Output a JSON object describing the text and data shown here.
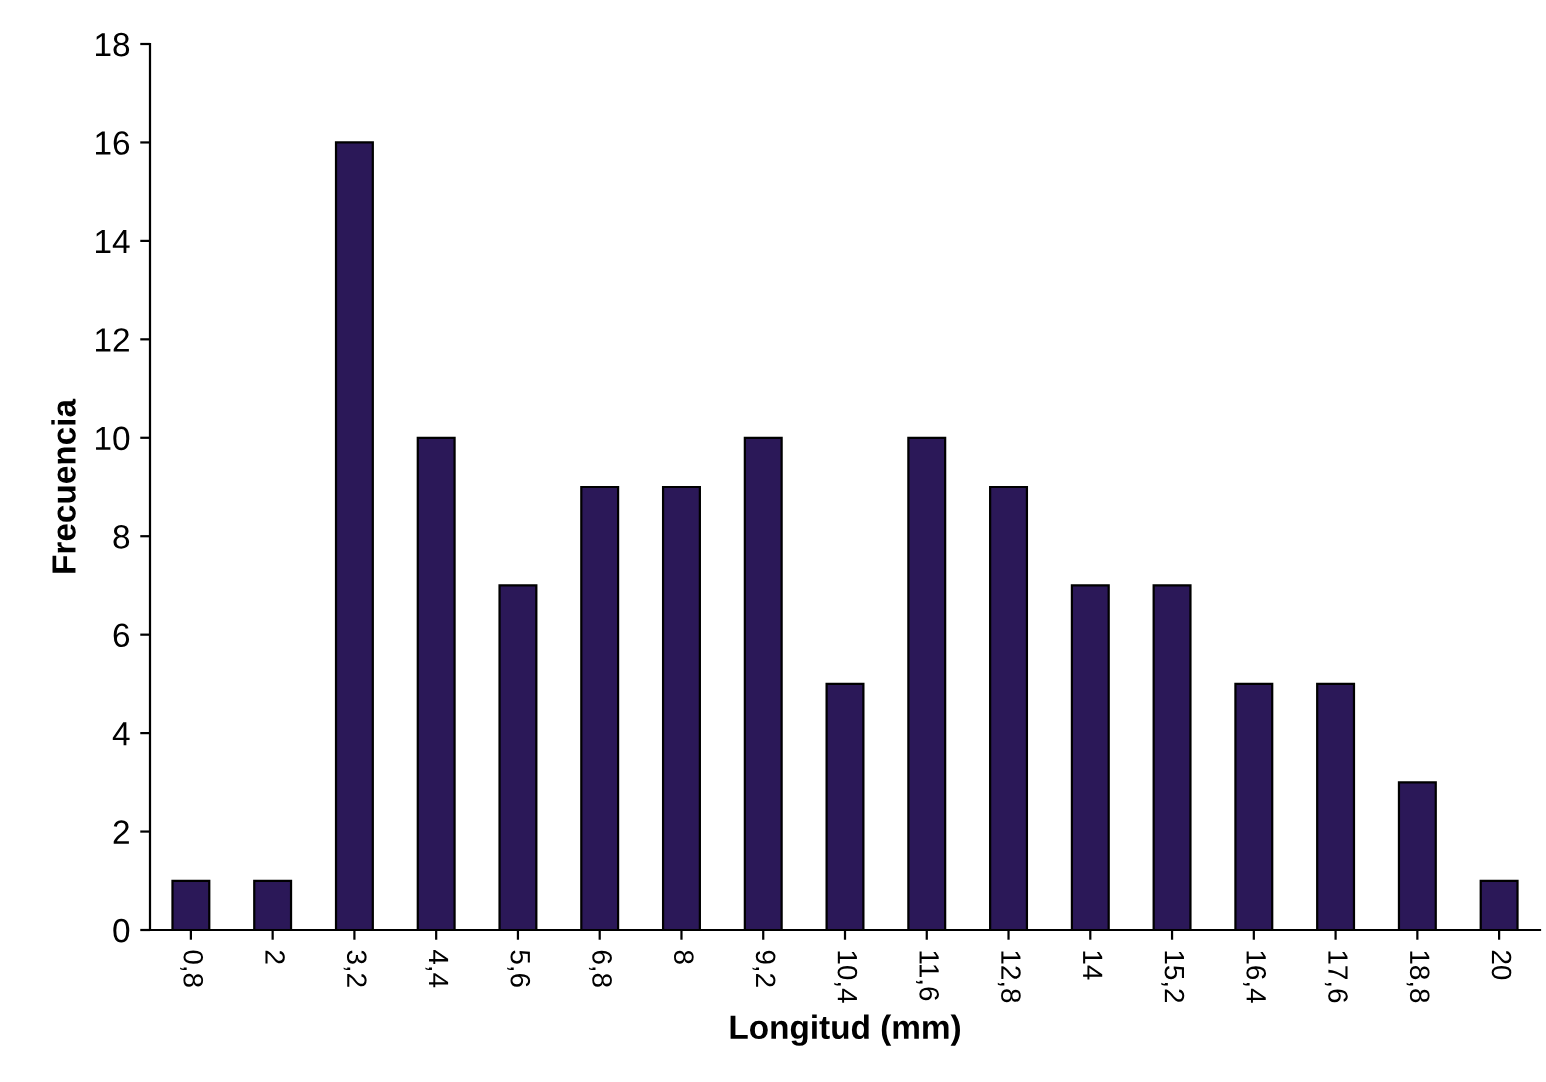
{
  "chart_data": {
    "type": "bar",
    "xlabel": "Longitud (mm)",
    "ylabel": "Frecuencia",
    "categories": [
      "0,8",
      "2",
      "3,2",
      "4,4",
      "5,6",
      "6,8",
      "8",
      "9,2",
      "10,4",
      "11,6",
      "12,8",
      "14",
      "15,2",
      "16,4",
      "17,6",
      "18,8",
      "20"
    ],
    "values": [
      1,
      1,
      16,
      10,
      7,
      9,
      9,
      10,
      5,
      10,
      9,
      7,
      7,
      5,
      5,
      3,
      1
    ],
    "color": "#2b1858",
    "ylim": [
      0,
      18
    ],
    "yticks": [
      0,
      2,
      4,
      6,
      8,
      10,
      12,
      14,
      16,
      18
    ],
    "grid": false,
    "legend": false
  }
}
